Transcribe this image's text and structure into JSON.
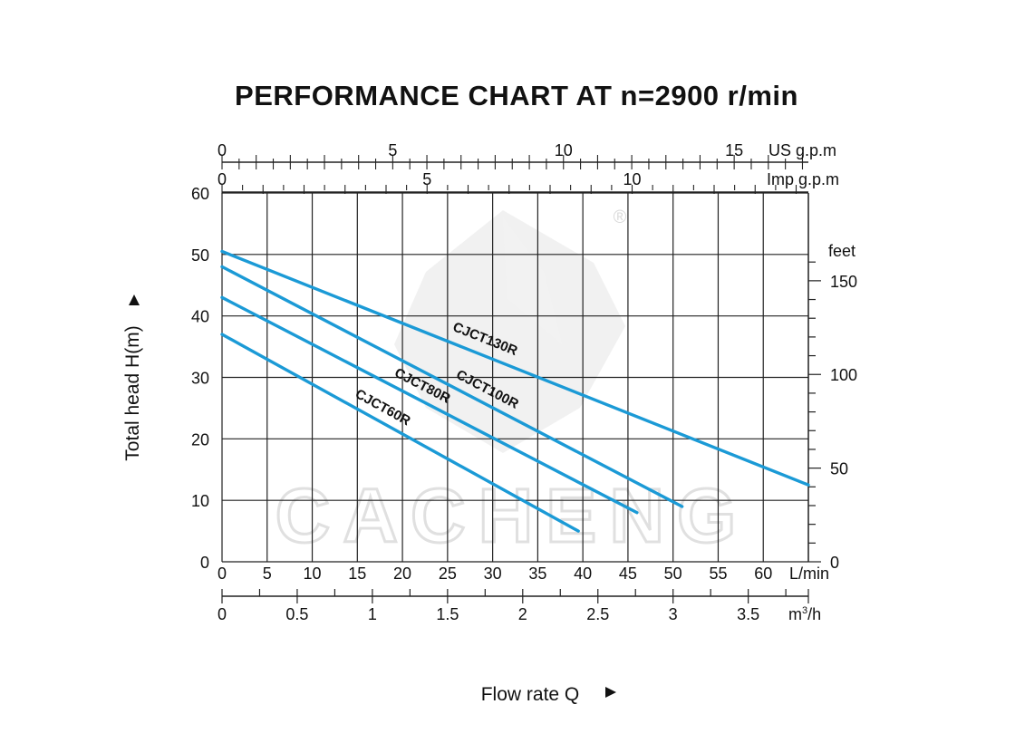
{
  "chart_data": {
    "type": "line",
    "title": "PERFORMANCE CHART AT n=2900 r/min",
    "xlabel": "Flow rate  Q",
    "ylabel": "Total  head H(m)",
    "x_unit": "L/min",
    "xlim": [
      0,
      65
    ],
    "ylim": [
      0,
      60
    ],
    "x_ticks": [
      0,
      5,
      10,
      15,
      20,
      25,
      30,
      35,
      40,
      45,
      50,
      55,
      60
    ],
    "y_ticks": [
      0,
      10,
      20,
      30,
      40,
      50,
      60
    ],
    "grid": true,
    "secondary_axes": {
      "top_us": {
        "label": "US g.p.m",
        "ticks": [
          0,
          5,
          10,
          15
        ]
      },
      "top_imp": {
        "label": "Imp g.p.m",
        "ticks": [
          0,
          5,
          10
        ]
      },
      "bottom_m3h": {
        "unit_text": "m",
        "unit_sup": "3",
        "unit_rest": "/h",
        "ticks": [
          "0",
          "0.5",
          "1",
          "1.5",
          "2",
          "2.5",
          "3",
          "3.5"
        ]
      },
      "right_feet": {
        "label": "feet",
        "ticks": [
          0,
          50,
          100,
          150
        ]
      }
    },
    "series": [
      {
        "name": "CJCT130R",
        "color": "#1b9ad6",
        "x": [
          0,
          65
        ],
        "y": [
          50.5,
          12.5
        ]
      },
      {
        "name": "CJCT100R",
        "color": "#1b9ad6",
        "x": [
          0,
          51
        ],
        "y": [
          48,
          9
        ]
      },
      {
        "name": "CJCT80R",
        "color": "#1b9ad6",
        "x": [
          0,
          46
        ],
        "y": [
          43,
          8
        ]
      },
      {
        "name": "CJCT60R",
        "color": "#1b9ad6",
        "x": [
          0,
          39.5
        ],
        "y": [
          37,
          5
        ]
      }
    ]
  },
  "watermark": {
    "text": "CACHENG",
    "registered": "®"
  }
}
